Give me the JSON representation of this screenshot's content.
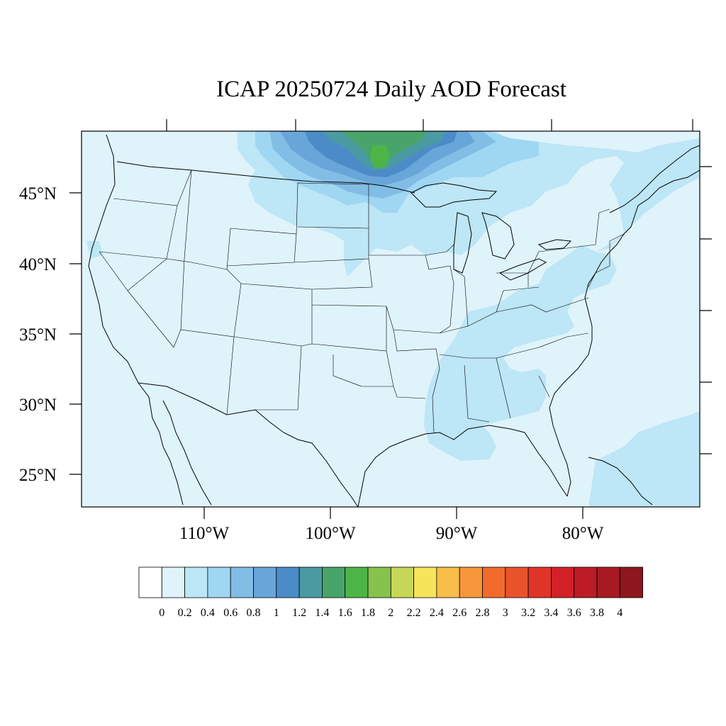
{
  "title": "ICAP 20250724 Daily AOD Forecast",
  "map": {
    "projection": "lambert-conformal-conus",
    "lon_range": [
      -119,
      -71
    ],
    "lat_range": [
      22.5,
      49.5
    ],
    "lat_labels": [
      "45°N",
      "40°N",
      "35°N",
      "30°N",
      "25°N"
    ],
    "lon_labels": [
      "110°W",
      "100°W",
      "90°W",
      "80°W"
    ],
    "background_color": "#dff3fb",
    "plume": {
      "description_source": "AOD field",
      "core_region": "Northern Minnesota / Lake of the Woods",
      "core_level": "1.6-1.8",
      "peripheral_region": "Upper Midwest, Great Lakes, Southeast",
      "peripheral_level": "0.2-0.4"
    }
  },
  "colorbar": {
    "labels": [
      "0",
      "0.2",
      "0.4",
      "0.6",
      "0.8",
      "1",
      "1.2",
      "1.4",
      "1.6",
      "1.8",
      "2",
      "2.2",
      "2.4",
      "2.6",
      "2.8",
      "3",
      "3.2",
      "3.4",
      "3.6",
      "3.8",
      "4"
    ],
    "colors": [
      "#ffffff",
      "#dff3fb",
      "#bde6f6",
      "#9fd6f2",
      "#82bde5",
      "#68a6d9",
      "#4b8cc8",
      "#4a9aa2",
      "#48a46a",
      "#4db547",
      "#87c34c",
      "#c6d757",
      "#f6e45a",
      "#f8be49",
      "#f7963a",
      "#f26b2d",
      "#e8532b",
      "#e13428",
      "#d22127",
      "#bb1c26",
      "#a81a23",
      "#8e161d"
    ]
  }
}
